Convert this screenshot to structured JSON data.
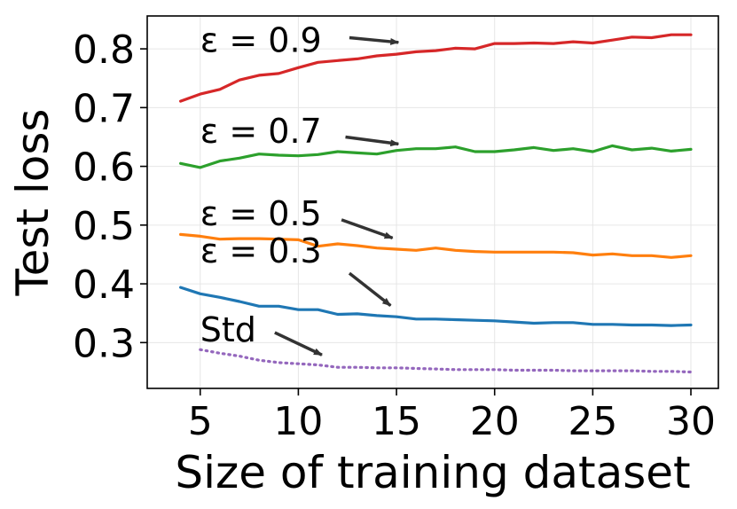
{
  "chart_data": {
    "type": "line",
    "title": "",
    "xlabel": "Size of training dataset",
    "ylabel": "Test loss",
    "xlim": [
      2.3,
      31.4
    ],
    "ylim": [
      0.222,
      0.856
    ],
    "xticks": [
      5,
      10,
      15,
      20,
      25,
      30
    ],
    "yticks": [
      0.3,
      0.4,
      0.5,
      0.6,
      0.7,
      0.8
    ],
    "ytick_labels": [
      "0.3",
      "0.4",
      "0.5",
      "0.6",
      "0.7",
      "0.8"
    ],
    "grid": true,
    "x": [
      4,
      5,
      6,
      7,
      8,
      9,
      10,
      11,
      12,
      13,
      14,
      15,
      16,
      17,
      18,
      19,
      20,
      21,
      22,
      23,
      24,
      25,
      26,
      27,
      28,
      29,
      30
    ],
    "series": [
      {
        "name": "ε = 0.9",
        "color": "#d62728",
        "style": "solid",
        "x": [
          4,
          5,
          6,
          7,
          8,
          9,
          10,
          11,
          12,
          13,
          14,
          15,
          16,
          17,
          18,
          19,
          20,
          21,
          22,
          23,
          24,
          25,
          26,
          27,
          28,
          29,
          30
        ],
        "values": [
          0.711,
          0.723,
          0.731,
          0.747,
          0.755,
          0.758,
          0.768,
          0.777,
          0.78,
          0.783,
          0.788,
          0.791,
          0.795,
          0.797,
          0.801,
          0.8,
          0.809,
          0.809,
          0.81,
          0.809,
          0.812,
          0.81,
          0.815,
          0.82,
          0.819,
          0.824,
          0.824
        ]
      },
      {
        "name": "ε = 0.7",
        "color": "#2ca02c",
        "style": "solid",
        "x": [
          4,
          5,
          6,
          7,
          8,
          9,
          10,
          11,
          12,
          13,
          14,
          15,
          16,
          17,
          18,
          19,
          20,
          21,
          22,
          23,
          24,
          25,
          26,
          27,
          28,
          29,
          30
        ],
        "values": [
          0.605,
          0.598,
          0.609,
          0.614,
          0.621,
          0.619,
          0.618,
          0.62,
          0.625,
          0.623,
          0.621,
          0.627,
          0.63,
          0.63,
          0.633,
          0.625,
          0.625,
          0.628,
          0.632,
          0.627,
          0.63,
          0.625,
          0.635,
          0.628,
          0.631,
          0.626,
          0.629
        ]
      },
      {
        "name": "ε = 0.5",
        "color": "#ff7f0e",
        "style": "solid",
        "x": [
          4,
          5,
          6,
          7,
          8,
          9,
          10,
          11,
          12,
          13,
          14,
          15,
          16,
          17,
          18,
          19,
          20,
          21,
          22,
          23,
          24,
          25,
          26,
          27,
          28,
          29,
          30
        ],
        "values": [
          0.484,
          0.481,
          0.476,
          0.477,
          0.477,
          0.476,
          0.475,
          0.464,
          0.468,
          0.465,
          0.461,
          0.459,
          0.457,
          0.461,
          0.457,
          0.455,
          0.454,
          0.454,
          0.454,
          0.454,
          0.453,
          0.449,
          0.451,
          0.448,
          0.448,
          0.445,
          0.448
        ]
      },
      {
        "name": "ε = 0.3",
        "color": "#1f77b4",
        "style": "solid",
        "x": [
          4,
          5,
          6,
          7,
          8,
          9,
          10,
          11,
          12,
          13,
          14,
          15,
          16,
          17,
          18,
          19,
          20,
          21,
          22,
          23,
          24,
          25,
          26,
          27,
          28,
          29,
          30
        ],
        "values": [
          0.394,
          0.383,
          0.377,
          0.37,
          0.362,
          0.362,
          0.356,
          0.356,
          0.348,
          0.349,
          0.346,
          0.344,
          0.34,
          0.34,
          0.339,
          0.338,
          0.337,
          0.335,
          0.333,
          0.334,
          0.334,
          0.331,
          0.331,
          0.33,
          0.33,
          0.329,
          0.33
        ]
      },
      {
        "name": "Std",
        "color": "#9467bd",
        "style": "dotted",
        "x": [
          5,
          6,
          7,
          8,
          9,
          10,
          11,
          12,
          13,
          14,
          15,
          16,
          17,
          18,
          19,
          20,
          21,
          22,
          23,
          24,
          25,
          26,
          27,
          28,
          29,
          30
        ],
        "values": [
          0.288,
          0.282,
          0.277,
          0.27,
          0.266,
          0.264,
          0.262,
          0.258,
          0.258,
          0.257,
          0.257,
          0.256,
          0.255,
          0.254,
          0.254,
          0.254,
          0.253,
          0.253,
          0.253,
          0.252,
          0.252,
          0.252,
          0.252,
          0.251,
          0.251,
          0.25
        ]
      }
    ],
    "annotations": [
      {
        "text": "ε =  0.9",
        "text_x": 5.0,
        "text_y": 0.795,
        "arrow_from": [
          12.6,
          0.819
        ],
        "arrow_to": [
          15.1,
          0.811
        ]
      },
      {
        "text": "ε =  0.7",
        "text_x": 5.0,
        "text_y": 0.64,
        "arrow_from": [
          12.4,
          0.65
        ],
        "arrow_to": [
          15.1,
          0.638
        ]
      },
      {
        "text": "ε =  0.5",
        "text_x": 5.0,
        "text_y": 0.5,
        "arrow_from": [
          12.2,
          0.509
        ],
        "arrow_to": [
          14.8,
          0.478
        ]
      },
      {
        "text": "ε =  0.3",
        "text_x": 5.0,
        "text_y": 0.436,
        "arrow_from": [
          12.6,
          0.418
        ],
        "arrow_to": [
          14.7,
          0.363
        ]
      },
      {
        "text": "Std",
        "text_x": 5.0,
        "text_y": 0.302,
        "arrow_from": [
          8.8,
          0.317
        ],
        "arrow_to": [
          11.2,
          0.279
        ]
      }
    ]
  }
}
